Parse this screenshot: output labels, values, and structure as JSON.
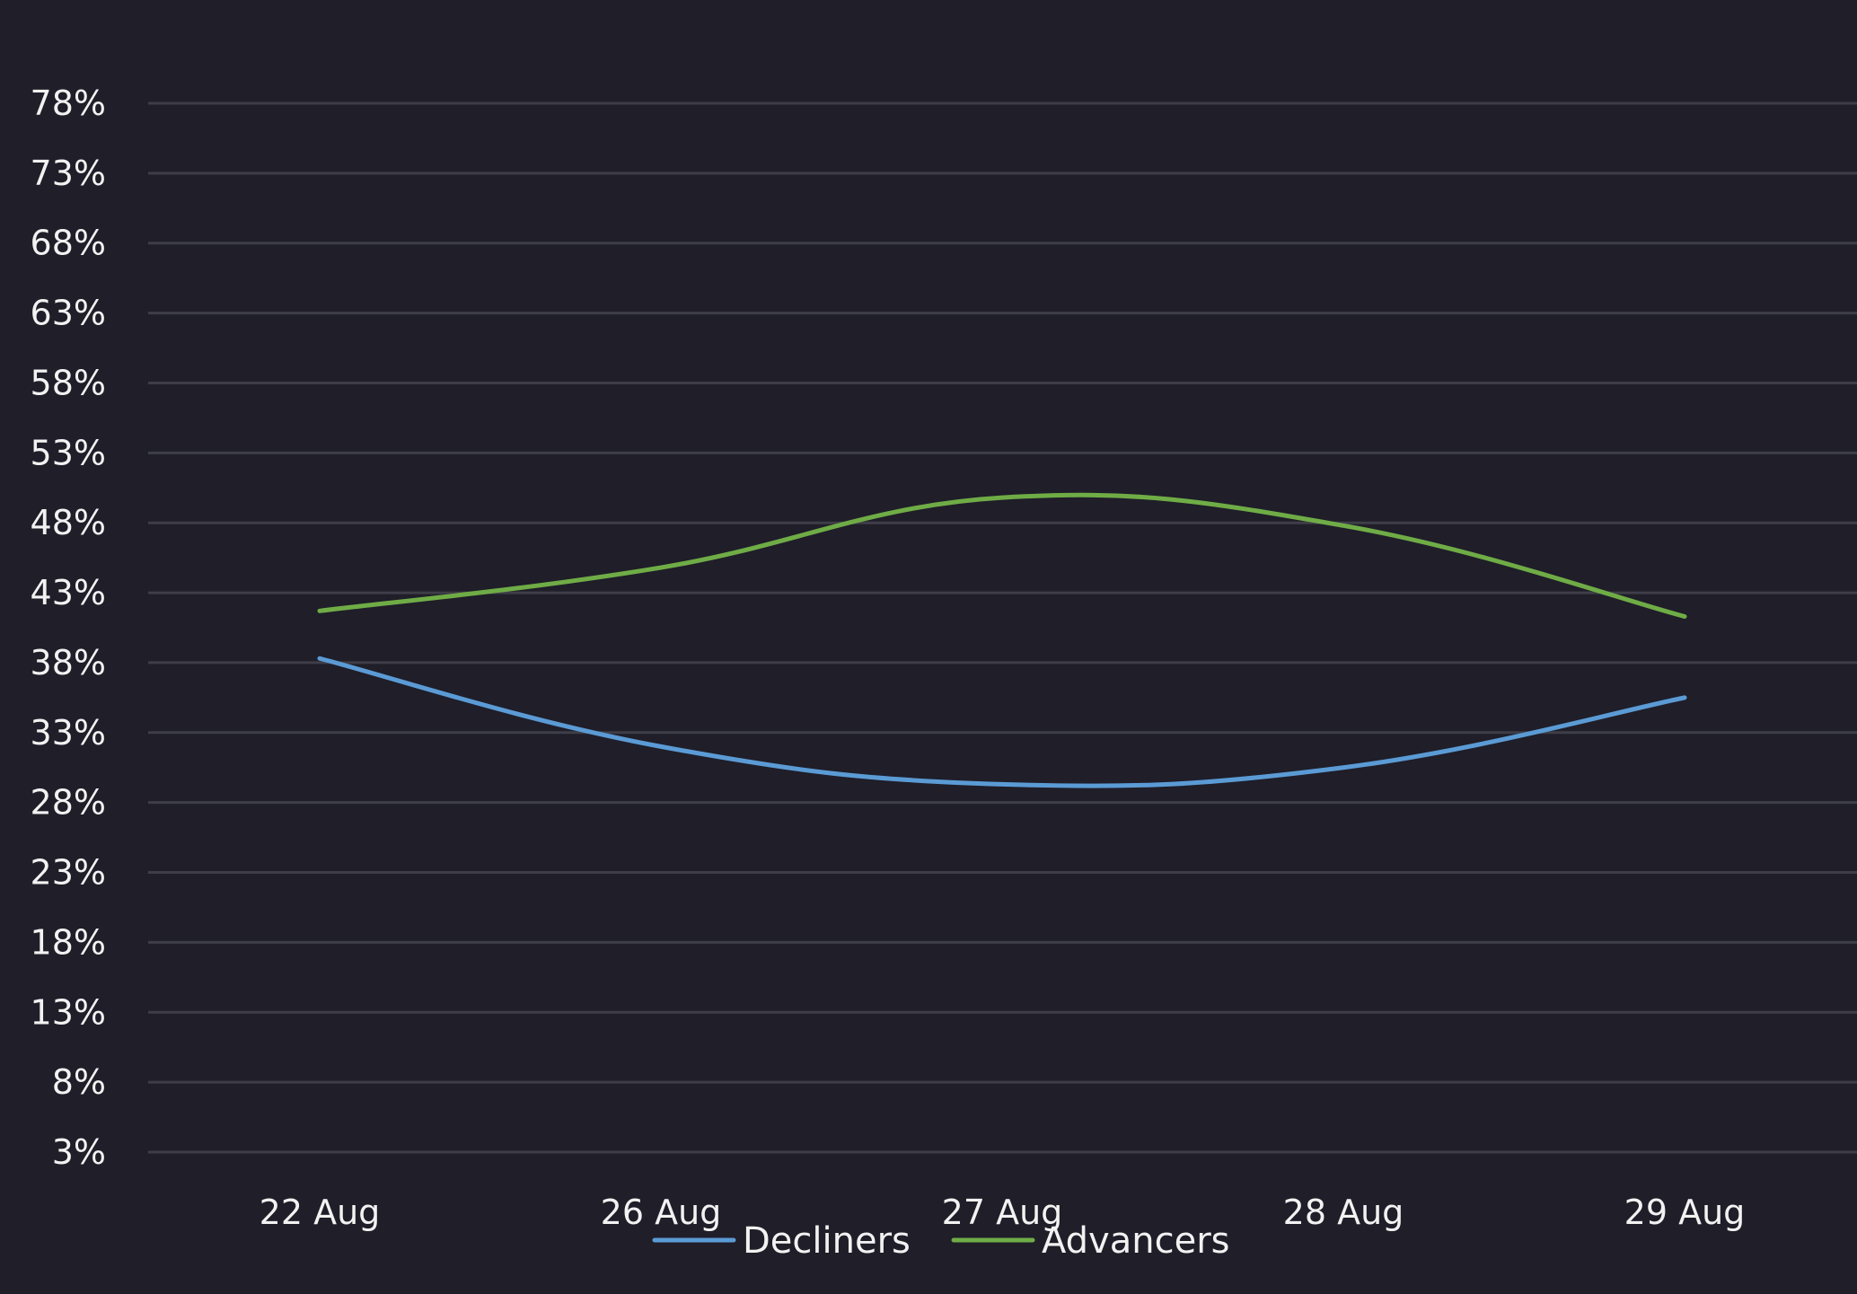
{
  "colors": {
    "background": "#1f1e29",
    "grid": "#3f3e48",
    "text": "#f2f2f2"
  },
  "chart_data": {
    "type": "line",
    "smooth": true,
    "categories": [
      "22 Aug",
      "26 Aug",
      "27 Aug",
      "28 Aug",
      "29 Aug"
    ],
    "y_ticks": [
      "3%",
      "8%",
      "13%",
      "18%",
      "23%",
      "28%",
      "33%",
      "38%",
      "43%",
      "48%",
      "53%",
      "58%",
      "63%",
      "68%",
      "73%",
      "78%"
    ],
    "ylim": [
      3,
      78
    ],
    "grid": true,
    "legend_position": "bottom-center",
    "series": [
      {
        "name": "Decliners",
        "color": "#5b9bd5",
        "values": [
          38.3,
          32.0,
          29.3,
          30.5,
          35.5
        ]
      },
      {
        "name": "Advancers",
        "color": "#6fac46",
        "values": [
          41.7,
          44.8,
          49.8,
          47.8,
          41.3
        ]
      }
    ]
  }
}
